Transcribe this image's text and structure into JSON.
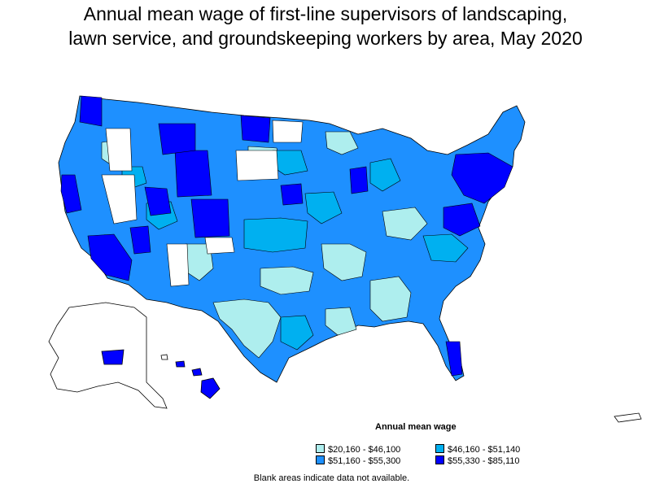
{
  "title_line1": "Annual mean wage of first-line supervisors of landscaping,",
  "title_line2": "lawn service, and groundskeeping workers by area, May 2020",
  "colors": {
    "bin1": "#aeeeee",
    "bin2": "#00b0f0",
    "bin3": "#1e90ff",
    "bin4": "#0000ff",
    "blank": "#ffffff",
    "border": "#000000"
  },
  "legend": {
    "title": "Annual mean wage",
    "items": [
      {
        "label": "$20,160 - $46,100",
        "color": "#aeeeee"
      },
      {
        "label": "$46,160 - $51,140",
        "color": "#00b0f0"
      },
      {
        "label": "$51,160 - $55,300",
        "color": "#1e90ff"
      },
      {
        "label": "$55,330 - $85,110",
        "color": "#0000ff"
      }
    ]
  },
  "footnote": "Blank areas indicate data not available."
}
